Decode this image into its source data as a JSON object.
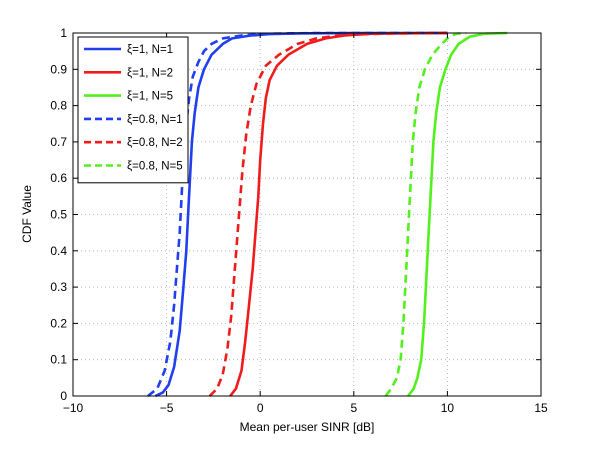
{
  "chart_data": {
    "type": "line",
    "title": "",
    "xlabel": "Mean per-user SINR [dB]",
    "ylabel": "CDF Value",
    "xlim": [
      -10,
      15
    ],
    "ylim": [
      0,
      1
    ],
    "xticks": [
      "-10",
      "-5",
      "0",
      "5",
      "10",
      "15"
    ],
    "yticks": [
      "0",
      "0.1",
      "0.2",
      "0.3",
      "0.4",
      "0.5",
      "0.6",
      "0.7",
      "0.8",
      "0.9",
      "1"
    ],
    "grid": true,
    "legend_position": "top-left",
    "series": [
      {
        "name": "ξ=1, N=1",
        "color": "#1f3ff0",
        "style": "solid",
        "x": [
          -5.6,
          -5.2,
          -4.9,
          -4.6,
          -4.3,
          -4.1,
          -3.95,
          -3.85,
          -3.75,
          -3.65,
          -3.5,
          -3.3,
          -3.0,
          -2.6,
          -2.0,
          -1.5,
          -0.5,
          0.5,
          2.0,
          5.0,
          10.0
        ],
        "y": [
          0.0,
          0.01,
          0.03,
          0.08,
          0.18,
          0.3,
          0.4,
          0.5,
          0.6,
          0.7,
          0.78,
          0.85,
          0.9,
          0.94,
          0.97,
          0.985,
          0.993,
          0.997,
          0.999,
          1.0,
          1.0
        ]
      },
      {
        "name": "ξ=1, N=2",
        "color": "#f01c1c",
        "style": "solid",
        "x": [
          -1.6,
          -1.3,
          -1.0,
          -0.8,
          -0.6,
          -0.4,
          -0.25,
          -0.1,
          0.0,
          0.15,
          0.3,
          0.5,
          0.9,
          1.5,
          2.5,
          3.5,
          4.5,
          6.0,
          10.0
        ],
        "y": [
          0.0,
          0.02,
          0.07,
          0.15,
          0.25,
          0.35,
          0.45,
          0.55,
          0.65,
          0.75,
          0.82,
          0.87,
          0.91,
          0.94,
          0.97,
          0.985,
          0.993,
          0.998,
          1.0
        ]
      },
      {
        "name": "ξ=1, N=5",
        "color": "#52f01c",
        "style": "solid",
        "x": [
          7.9,
          8.2,
          8.4,
          8.6,
          8.75,
          8.85,
          8.95,
          9.05,
          9.15,
          9.25,
          9.4,
          9.6,
          9.9,
          10.2,
          10.6,
          11.2,
          12.0,
          13.2
        ],
        "y": [
          0.0,
          0.02,
          0.05,
          0.1,
          0.2,
          0.3,
          0.4,
          0.5,
          0.6,
          0.7,
          0.78,
          0.85,
          0.9,
          0.94,
          0.97,
          0.99,
          0.998,
          1.0
        ]
      },
      {
        "name": "ξ=0.8, N=1",
        "color": "#1f3ff0",
        "style": "dashed",
        "x": [
          -6.0,
          -5.5,
          -5.1,
          -4.8,
          -4.6,
          -4.45,
          -4.3,
          -4.2,
          -4.1,
          -3.95,
          -3.8,
          -3.6,
          -3.3,
          -3.0,
          -2.6,
          -2.0,
          -1.0,
          0.5,
          3.0,
          10.0
        ],
        "y": [
          0.0,
          0.02,
          0.07,
          0.15,
          0.25,
          0.35,
          0.45,
          0.55,
          0.65,
          0.75,
          0.82,
          0.88,
          0.92,
          0.95,
          0.97,
          0.985,
          0.993,
          0.998,
          1.0,
          1.0
        ]
      },
      {
        "name": "ξ=0.8, N=2",
        "color": "#f01c1c",
        "style": "dashed",
        "x": [
          -2.7,
          -2.3,
          -2.0,
          -1.75,
          -1.55,
          -1.4,
          -1.25,
          -1.1,
          -0.95,
          -0.75,
          -0.5,
          -0.2,
          0.3,
          1.0,
          2.0,
          3.0,
          4.5,
          7.0,
          10.0
        ],
        "y": [
          0.0,
          0.02,
          0.06,
          0.13,
          0.22,
          0.32,
          0.42,
          0.52,
          0.62,
          0.72,
          0.8,
          0.86,
          0.91,
          0.94,
          0.97,
          0.985,
          0.995,
          0.999,
          1.0
        ]
      },
      {
        "name": "ξ=0.8, N=5",
        "color": "#52f01c",
        "style": "dashed",
        "x": [
          6.7,
          7.0,
          7.3,
          7.5,
          7.65,
          7.75,
          7.85,
          7.95,
          8.05,
          8.15,
          8.3,
          8.5,
          8.8,
          9.2,
          9.7,
          10.1,
          10.5,
          11.0
        ],
        "y": [
          0.0,
          0.02,
          0.05,
          0.1,
          0.2,
          0.3,
          0.4,
          0.5,
          0.6,
          0.7,
          0.78,
          0.85,
          0.9,
          0.94,
          0.97,
          0.99,
          0.998,
          1.0
        ]
      }
    ]
  }
}
